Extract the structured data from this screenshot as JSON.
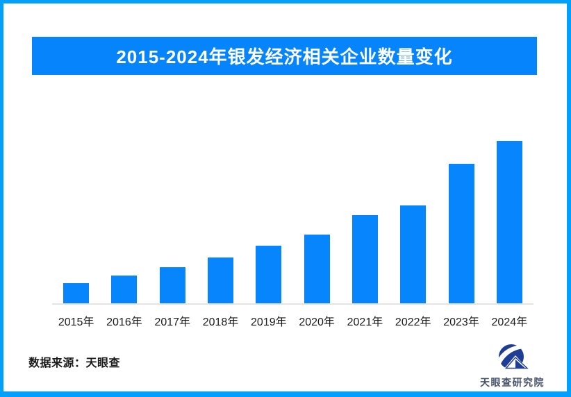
{
  "page": {
    "border_color": "#00A0FC",
    "background_color": "#FFFFFF"
  },
  "banner": {
    "title": "2015-2024年银发经济相关企业数量变化",
    "bg_color": "#0584FB",
    "text_color": "#FFFFFF"
  },
  "chart_data": {
    "type": "bar",
    "title": "2015-2024年银发经济相关企业数量变化",
    "categories": [
      "2015年",
      "2016年",
      "2017年",
      "2018年",
      "2019年",
      "2020年",
      "2021年",
      "2022年",
      "2023年",
      "2024年"
    ],
    "values": [
      12.4,
      17.1,
      22.4,
      28.4,
      35.5,
      42.3,
      54.3,
      60.3,
      85.7,
      100
    ],
    "values_note": "no y-axis or data labels shown; values estimated from bar heights as percent of the 2024 bar",
    "xlabel": "",
    "ylabel": "",
    "ylim": [
      0,
      100
    ],
    "grid": false,
    "legend": false,
    "bar_color": "#0685FC",
    "axis_color": "#E4E4E8"
  },
  "footer": {
    "source_label": "数据来源：天眼查"
  },
  "logo": {
    "text": "天眼查研究院",
    "icon": "tianyancha-eye-logo-icon",
    "color": "#1E3D96"
  }
}
